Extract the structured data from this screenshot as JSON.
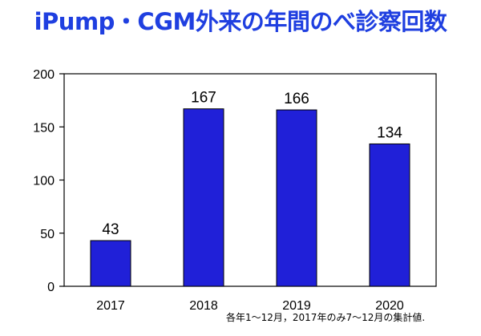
{
  "chart_data": {
    "type": "bar",
    "title": "iPump・CGM外来の年間のべ診察回数",
    "categories": [
      "2017",
      "2018",
      "2019",
      "2020"
    ],
    "values": [
      43,
      167,
      166,
      134
    ],
    "data_labels": [
      "43",
      "167",
      "166",
      "134"
    ],
    "ylim": [
      0,
      200
    ],
    "yticks": [
      0,
      50,
      100,
      150,
      200
    ],
    "xlabel": "",
    "ylabel": "",
    "grid": false,
    "legend": "none",
    "bar_color": "#2020d8",
    "title_color": "#1f3fe0",
    "footnote": "各年1～12月，2017年のみ7～12月の集計値."
  }
}
